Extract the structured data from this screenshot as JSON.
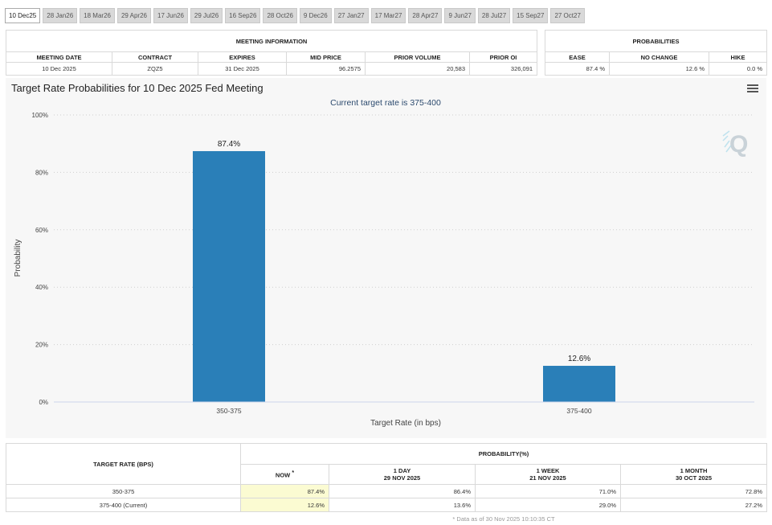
{
  "tabs": [
    "10 Dec25",
    "28 Jan26",
    "18 Mar26",
    "29 Apr26",
    "17 Jun26",
    "29 Jul26",
    "16 Sep26",
    "28 Oct26",
    "9 Dec26",
    "27 Jan27",
    "17 Mar27",
    "28 Apr27",
    "9 Jun27",
    "28 Jul27",
    "15 Sep27",
    "27 Oct27"
  ],
  "active_tab": 0,
  "meeting_info": {
    "title": "MEETING INFORMATION",
    "columns": [
      "MEETING DATE",
      "CONTRACT",
      "EXPIRES",
      "MID PRICE",
      "PRIOR VOLUME",
      "PRIOR OI"
    ],
    "values": [
      "10 Dec 2025",
      "ZQZ5",
      "31 Dec 2025",
      "96.2575",
      "20,583",
      "326,091"
    ]
  },
  "probabilities": {
    "title": "PROBABILITIES",
    "columns": [
      "EASE",
      "NO CHANGE",
      "HIKE"
    ],
    "values": [
      "87.4 %",
      "12.6 %",
      "0.0 %"
    ]
  },
  "chart_data": {
    "type": "bar",
    "title": "Target Rate Probabilities for 10 Dec 2025 Fed Meeting",
    "subtitle": "Current target rate is 375-400",
    "xlabel": "Target Rate (in bps)",
    "ylabel": "Probability",
    "categories": [
      "350-375",
      "375-400"
    ],
    "values": [
      87.4,
      12.6
    ],
    "data_labels": [
      "87.4%",
      "12.6%"
    ],
    "ylim": [
      0,
      100
    ],
    "yticks": [
      "0%",
      "20%",
      "40%",
      "60%",
      "80%",
      "100%"
    ],
    "grid": true,
    "legend": "none",
    "bar_color": "#2a7fb8"
  },
  "history_table": {
    "row_header": "TARGET RATE (BPS)",
    "group_header": "PROBABILITY(%)",
    "columns": [
      {
        "label": "NOW",
        "marker": "*",
        "date": ""
      },
      {
        "label": "1 DAY",
        "date": "29 NOV 2025"
      },
      {
        "label": "1 WEEK",
        "date": "21 NOV 2025"
      },
      {
        "label": "1 MONTH",
        "date": "30 OCT 2025"
      }
    ],
    "rows": [
      {
        "rate": "350-375",
        "values": [
          "87.4%",
          "86.4%",
          "71.0%",
          "72.8%"
        ]
      },
      {
        "rate": "375-400 (Current)",
        "values": [
          "12.6%",
          "13.6%",
          "29.0%",
          "27.2%"
        ]
      }
    ],
    "footnote": "* Data as of 30 Nov 2025 10:10:35 CT"
  }
}
